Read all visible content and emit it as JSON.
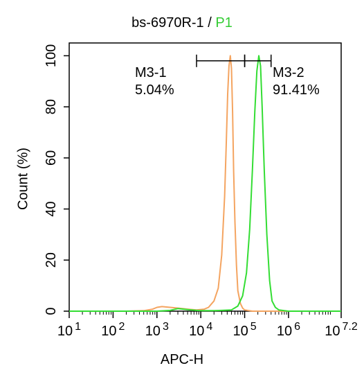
{
  "title": {
    "sample": "bs-6970R-1",
    "separator": " / ",
    "gate": "P1",
    "gate_color": "#33cc33"
  },
  "chart_data": {
    "type": "line",
    "xlabel": "APC-H",
    "ylabel": "Count  (%)",
    "x_scale": "log10",
    "xlim": [
      10,
      15848931.9
    ],
    "ylim": [
      0,
      105
    ],
    "x_ticks": [
      {
        "base": "10",
        "exp": "1",
        "value": 10
      },
      {
        "base": "10",
        "exp": "2",
        "value": 100
      },
      {
        "base": "10",
        "exp": "3",
        "value": 1000
      },
      {
        "base": "10",
        "exp": "4",
        "value": 10000
      },
      {
        "base": "10",
        "exp": "5",
        "value": 100000
      },
      {
        "base": "10",
        "exp": "6",
        "value": 1000000
      },
      {
        "base": "10",
        "exp": "7.2",
        "value": 15848931.9
      }
    ],
    "y_ticks": [
      {
        "label": "0",
        "value": 0
      },
      {
        "label": "20",
        "value": 20
      },
      {
        "label": "40",
        "value": 40
      },
      {
        "label": "60",
        "value": 60
      },
      {
        "label": "80",
        "value": 80
      },
      {
        "label": "100",
        "value": 100
      }
    ],
    "grid": false,
    "series": [
      {
        "color": "#f4a460",
        "x": [
          10,
          50,
          200,
          500,
          800,
          1000,
          1300,
          2000,
          3000,
          5000,
          8000,
          12000,
          15000,
          20000,
          25000,
          30000,
          35000,
          38000,
          41000,
          44000,
          47000,
          50000,
          53000,
          56000,
          60000,
          65000,
          70000,
          80000,
          90000,
          100000,
          150000,
          500000,
          2000000,
          15848931.9
        ],
        "y": [
          0,
          0,
          0,
          0.2,
          0.8,
          1.5,
          1.8,
          1.5,
          1.2,
          0.8,
          0.5,
          0.8,
          1.5,
          4,
          9,
          22,
          45,
          65,
          85,
          96,
          100,
          95,
          78,
          55,
          35,
          18,
          8,
          3,
          1.2,
          0.5,
          0,
          0,
          0,
          0
        ]
      },
      {
        "color": "#33dd33",
        "x": [
          10,
          100,
          1000,
          2000,
          3000,
          5000,
          8000,
          10000,
          20000,
          30000,
          50000,
          70000,
          90000,
          110000,
          130000,
          150000,
          170000,
          190000,
          210000,
          230000,
          250000,
          280000,
          320000,
          370000,
          420000,
          500000,
          600000,
          800000,
          1000000,
          15848931.9
        ],
        "y": [
          0,
          0,
          0,
          0.3,
          1,
          0.6,
          0.3,
          0.2,
          0.2,
          0.3,
          0.5,
          2,
          6,
          15,
          32,
          55,
          78,
          94,
          100,
          96,
          80,
          55,
          30,
          12,
          4,
          1.5,
          0.5,
          0.2,
          0,
          0
        ]
      }
    ],
    "gates": [
      {
        "name": "M3-1",
        "percent": "5.04%",
        "x_range": [
          8000,
          100000
        ],
        "y": 98
      },
      {
        "name": "M3-2",
        "percent": "91.41%",
        "x_range": [
          100000,
          400000
        ],
        "y": 98
      }
    ]
  }
}
